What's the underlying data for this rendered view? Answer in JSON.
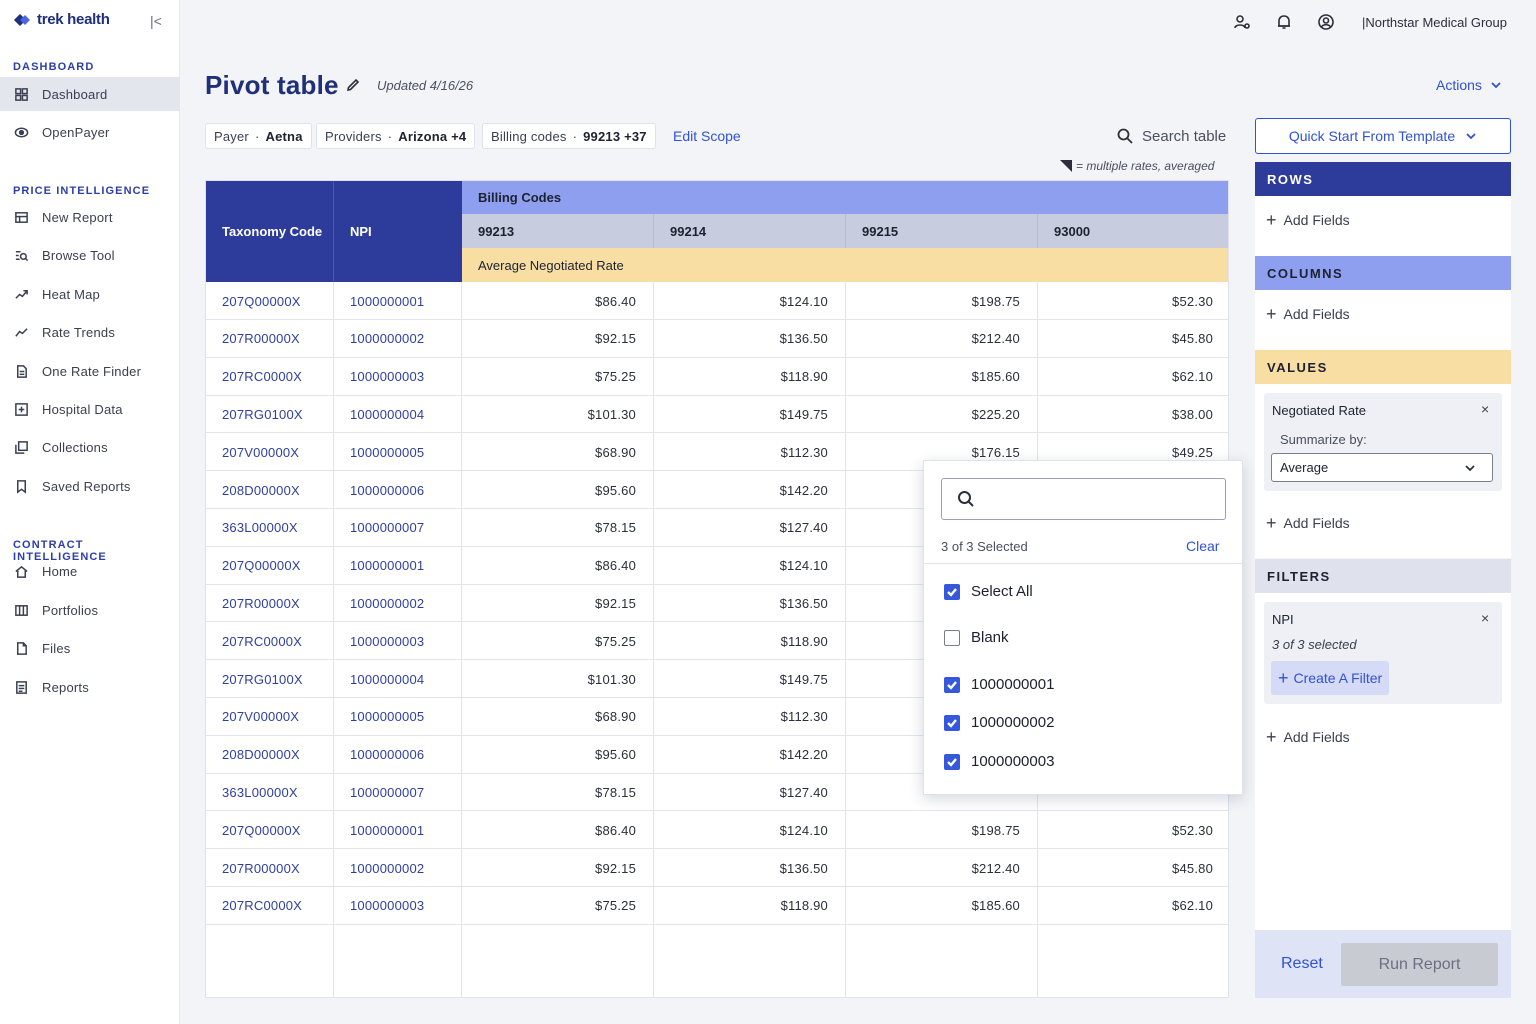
{
  "sidebar": {
    "brand": "trek health",
    "sections": {
      "dashboard": "DASHBOARD",
      "price": "PRICE INTELLIGENCE",
      "contract": "CONTRACT INTELLIGENCE"
    },
    "items": [
      {
        "label": "Dashboard",
        "icon": "grid-icon"
      },
      {
        "label": "OpenPayer",
        "icon": "eye-icon"
      },
      {
        "label": "New Report",
        "icon": "table-icon"
      },
      {
        "label": "Browse Tool",
        "icon": "list-search-icon"
      },
      {
        "label": "Heat Map",
        "icon": "trend-arrow-icon"
      },
      {
        "label": "Rate Trends",
        "icon": "trend-line-icon"
      },
      {
        "label": "One Rate Finder",
        "icon": "document-icon"
      },
      {
        "label": "Hospital Data",
        "icon": "plus-square-icon"
      },
      {
        "label": "Collections",
        "icon": "stack-icon"
      },
      {
        "label": "Saved Reports",
        "icon": "bookmark-icon"
      },
      {
        "label": "Home",
        "icon": "home-icon"
      },
      {
        "label": "Portfolios",
        "icon": "columns-icon"
      },
      {
        "label": "Files",
        "icon": "file-icon"
      },
      {
        "label": "Reports",
        "icon": "report-icon"
      }
    ]
  },
  "topbar": {
    "org": "|Northstar Medical Group"
  },
  "header": {
    "title": "Pivot table",
    "updated": "Updated 4/16/26",
    "actions": "Actions"
  },
  "scope": {
    "payer_label": "Payer",
    "payer_value": "Aetna",
    "providers_label": "Providers",
    "providers_value": "Arizona +4",
    "billing_label": "Billing codes",
    "billing_value": "99213 +37",
    "edit": "Edit Scope",
    "search": "Search table",
    "legend": "= multiple rates, averaged"
  },
  "table": {
    "col_taxonomy": "Taxonomy Code",
    "col_npi": "NPI",
    "billing_header": "Billing Codes",
    "codes": [
      "99213",
      "99214",
      "99215",
      "93000"
    ],
    "value_header": "Average Negotiated Rate",
    "rows": [
      {
        "tax": "207Q00000X",
        "npi": "1000000001",
        "v": [
          "$86.40",
          "$124.10",
          "$198.75",
          "$52.30"
        ]
      },
      {
        "tax": "207R00000X",
        "npi": "1000000002",
        "v": [
          "$92.15",
          "$136.50",
          "$212.40",
          "$45.80"
        ]
      },
      {
        "tax": "207RC0000X",
        "npi": "1000000003",
        "v": [
          "$75.25",
          "$118.90",
          "$185.60",
          "$62.10"
        ]
      },
      {
        "tax": "207RG0100X",
        "npi": "1000000004",
        "v": [
          "$101.30",
          "$149.75",
          "$225.20",
          "$38.00"
        ]
      },
      {
        "tax": "207V00000X",
        "npi": "1000000005",
        "v": [
          "$68.90",
          "$112.30",
          "$176.15",
          "$49.25"
        ]
      },
      {
        "tax": "208D00000X",
        "npi": "1000000006",
        "v": [
          "$95.60",
          "$142.20",
          "",
          ""
        ]
      },
      {
        "tax": "363L00000X",
        "npi": "1000000007",
        "v": [
          "$78.15",
          "$127.40",
          "",
          ""
        ]
      },
      {
        "tax": "207Q00000X",
        "npi": "1000000001",
        "v": [
          "$86.40",
          "$124.10",
          "",
          ""
        ]
      },
      {
        "tax": "207R00000X",
        "npi": "1000000002",
        "v": [
          "$92.15",
          "$136.50",
          "",
          ""
        ]
      },
      {
        "tax": "207RC0000X",
        "npi": "1000000003",
        "v": [
          "$75.25",
          "$118.90",
          "",
          ""
        ]
      },
      {
        "tax": "207RG0100X",
        "npi": "1000000004",
        "v": [
          "$101.30",
          "$149.75",
          "",
          ""
        ]
      },
      {
        "tax": "207V00000X",
        "npi": "1000000005",
        "v": [
          "$68.90",
          "$112.30",
          "",
          ""
        ]
      },
      {
        "tax": "208D00000X",
        "npi": "1000000006",
        "v": [
          "$95.60",
          "$142.20",
          "",
          ""
        ]
      },
      {
        "tax": "363L00000X",
        "npi": "1000000007",
        "v": [
          "$78.15",
          "$127.40",
          "",
          ""
        ]
      },
      {
        "tax": "207Q00000X",
        "npi": "1000000001",
        "v": [
          "$86.40",
          "$124.10",
          "$198.75",
          "$52.30"
        ]
      },
      {
        "tax": "207R00000X",
        "npi": "1000000002",
        "v": [
          "$92.15",
          "$136.50",
          "$212.40",
          "$45.80"
        ]
      },
      {
        "tax": "207RC0000X",
        "npi": "1000000003",
        "v": [
          "$75.25",
          "$118.90",
          "$185.60",
          "$62.10"
        ]
      }
    ]
  },
  "dropdown": {
    "search_placeholder": "",
    "count": "3 of 3 Selected",
    "clear": "Clear",
    "options": [
      {
        "label": "Select All",
        "checked": true
      },
      {
        "label": "Blank",
        "checked": false
      },
      {
        "label": "1000000001",
        "checked": true
      },
      {
        "label": "1000000002",
        "checked": true
      },
      {
        "label": "1000000003",
        "checked": true
      }
    ]
  },
  "panel": {
    "quick_start": "Quick Start From Template",
    "rows": "ROWS",
    "columns": "COLUMNS",
    "values": "VALUES",
    "filters": "FILTERS",
    "add_fields": "Add Fields",
    "value_card": {
      "title": "Negotiated Rate",
      "close": "×",
      "summarize": "Summarize by:",
      "selected": "Average"
    },
    "filter_card": {
      "title": "NPI",
      "close": "×",
      "selected": "3 of 3 selected",
      "create": "Create A Filter"
    },
    "reset": "Reset",
    "run": "Run Report"
  },
  "colors": {
    "primary": "#2d3c9b",
    "accent": "#2f52d6",
    "billing": "#8f9ff0",
    "values": "#f8dea2",
    "averaged_marker": "#f5d27c"
  }
}
